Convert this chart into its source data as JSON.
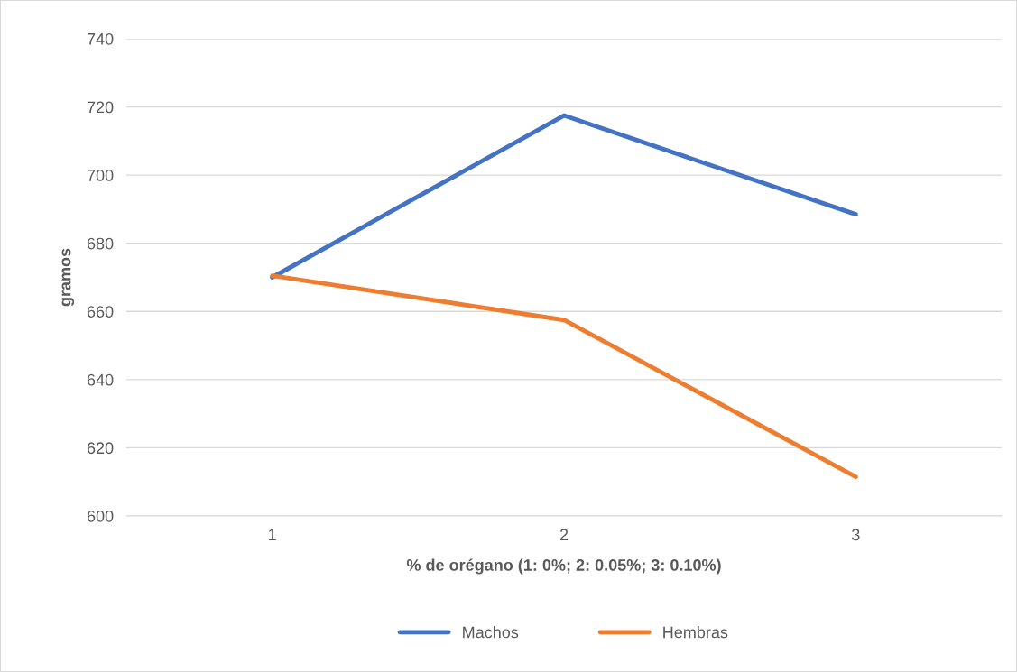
{
  "chart_data": {
    "type": "line",
    "xlabel": "% de orégano (1: 0%; 2: 0.05%; 3: 0.10%)",
    "ylabel": "gramos",
    "categories": [
      "1",
      "2",
      "3"
    ],
    "series": [
      {
        "name": "Machos",
        "color": "#4472c4",
        "values": [
          670,
          717.5,
          688.5
        ]
      },
      {
        "name": "Hembras",
        "color": "#ed7d31",
        "values": [
          670.5,
          657.5,
          611.5
        ]
      }
    ],
    "ylim": [
      600,
      740
    ],
    "yticks": [
      600,
      620,
      640,
      660,
      680,
      700,
      720,
      740
    ],
    "grid": "y",
    "legend": "bottom",
    "marker": "none",
    "line_style": "solid"
  }
}
